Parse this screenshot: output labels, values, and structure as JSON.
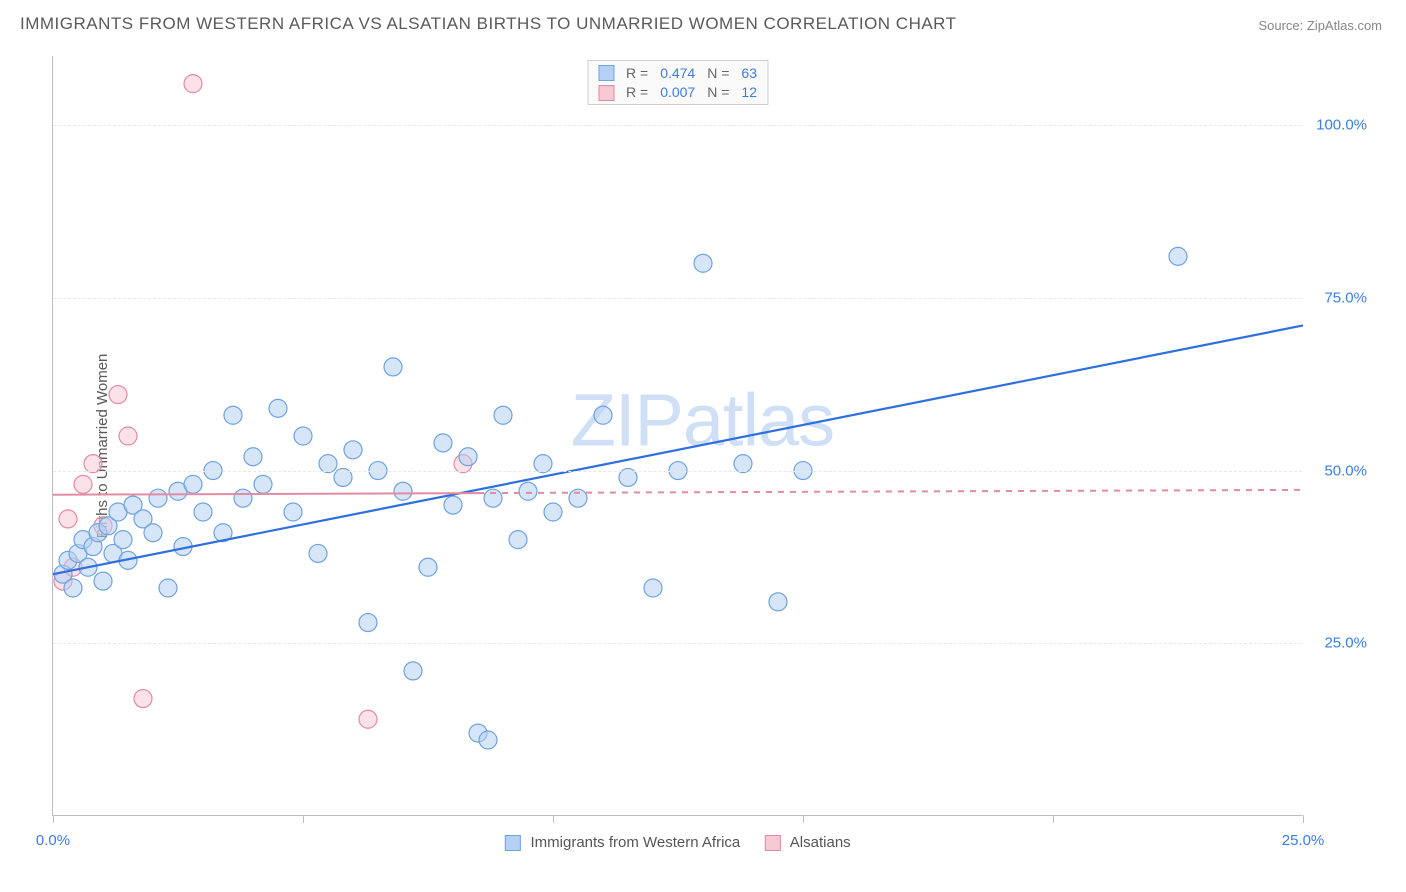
{
  "title": "IMMIGRANTS FROM WESTERN AFRICA VS ALSATIAN BIRTHS TO UNMARRIED WOMEN CORRELATION CHART",
  "source": "Source: ZipAtlas.com",
  "ylabel": "Births to Unmarried Women",
  "watermark": "ZIPatlas",
  "chart": {
    "type": "scatter",
    "xlim": [
      0,
      25
    ],
    "ylim": [
      0,
      110
    ],
    "y_grid": [
      25,
      50,
      75,
      100
    ],
    "y_tick_labels": [
      "25.0%",
      "50.0%",
      "75.0%",
      "100.0%"
    ],
    "x_ticks": [
      0,
      5,
      10,
      15,
      20,
      25
    ],
    "x_tick_labels": [
      "0.0%",
      "",
      "",
      "",
      "",
      "25.0%"
    ],
    "background": "#ffffff",
    "grid_color": "#e8e8e8",
    "axis_color": "#bdbdbd",
    "tick_label_color": "#3b7de0",
    "marker_radius": 9,
    "marker_opacity": 0.55,
    "series": [
      {
        "name": "Immigrants from Western Africa",
        "color_fill": "#b6d0f3",
        "color_stroke": "#6fa3e0",
        "r_value": "0.474",
        "n_value": "63",
        "trend": {
          "x1": 0,
          "y1": 35,
          "x2": 25,
          "y2": 71,
          "color": "#2e6fe0",
          "width": 2.2,
          "dash": "none"
        },
        "points": [
          [
            0.2,
            35
          ],
          [
            0.3,
            37
          ],
          [
            0.4,
            33
          ],
          [
            0.5,
            38
          ],
          [
            0.6,
            40
          ],
          [
            0.7,
            36
          ],
          [
            0.8,
            39
          ],
          [
            0.9,
            41
          ],
          [
            1.0,
            34
          ],
          [
            1.1,
            42
          ],
          [
            1.2,
            38
          ],
          [
            1.3,
            44
          ],
          [
            1.4,
            40
          ],
          [
            1.5,
            37
          ],
          [
            1.6,
            45
          ],
          [
            1.8,
            43
          ],
          [
            2.0,
            41
          ],
          [
            2.1,
            46
          ],
          [
            2.3,
            33
          ],
          [
            2.5,
            47
          ],
          [
            2.6,
            39
          ],
          [
            2.8,
            48
          ],
          [
            3.0,
            44
          ],
          [
            3.2,
            50
          ],
          [
            3.4,
            41
          ],
          [
            3.6,
            58
          ],
          [
            3.8,
            46
          ],
          [
            4.0,
            52
          ],
          [
            4.2,
            48
          ],
          [
            4.5,
            59
          ],
          [
            4.8,
            44
          ],
          [
            5.0,
            55
          ],
          [
            5.3,
            38
          ],
          [
            5.5,
            51
          ],
          [
            5.8,
            49
          ],
          [
            6.0,
            53
          ],
          [
            6.3,
            28
          ],
          [
            6.5,
            50
          ],
          [
            6.8,
            65
          ],
          [
            7.0,
            47
          ],
          [
            7.2,
            21
          ],
          [
            7.5,
            36
          ],
          [
            7.8,
            54
          ],
          [
            8.0,
            45
          ],
          [
            8.3,
            52
          ],
          [
            8.5,
            12
          ],
          [
            8.8,
            46
          ],
          [
            9.0,
            58
          ],
          [
            9.3,
            40
          ],
          [
            9.5,
            47
          ],
          [
            9.8,
            51
          ],
          [
            8.7,
            11
          ],
          [
            10.0,
            44
          ],
          [
            10.5,
            46
          ],
          [
            11.0,
            58
          ],
          [
            11.5,
            49
          ],
          [
            12.0,
            33
          ],
          [
            12.5,
            50
          ],
          [
            13.0,
            80
          ],
          [
            13.8,
            51
          ],
          [
            14.5,
            31
          ],
          [
            15.0,
            50
          ],
          [
            22.5,
            81
          ]
        ]
      },
      {
        "name": "Alsatians",
        "color_fill": "#f7c9d5",
        "color_stroke": "#e38aa5",
        "r_value": "0.007",
        "n_value": "12",
        "trend": {
          "x1": 0,
          "y1": 46.5,
          "x2": 25,
          "y2": 47.2,
          "color": "#e38aa5",
          "width": 2,
          "dash": "solid_then_dash"
        },
        "points": [
          [
            0.2,
            34
          ],
          [
            0.3,
            43
          ],
          [
            0.4,
            36
          ],
          [
            0.6,
            48
          ],
          [
            0.8,
            51
          ],
          [
            1.0,
            42
          ],
          [
            1.3,
            61
          ],
          [
            1.5,
            55
          ],
          [
            1.8,
            17
          ],
          [
            2.8,
            106
          ],
          [
            6.3,
            14
          ],
          [
            8.2,
            51
          ]
        ]
      }
    ]
  },
  "legend_top": {
    "r_label": "R  =",
    "n_label": "N  ="
  },
  "legend_bottom": {
    "items": [
      "Immigrants from Western Africa",
      "Alsatians"
    ]
  }
}
